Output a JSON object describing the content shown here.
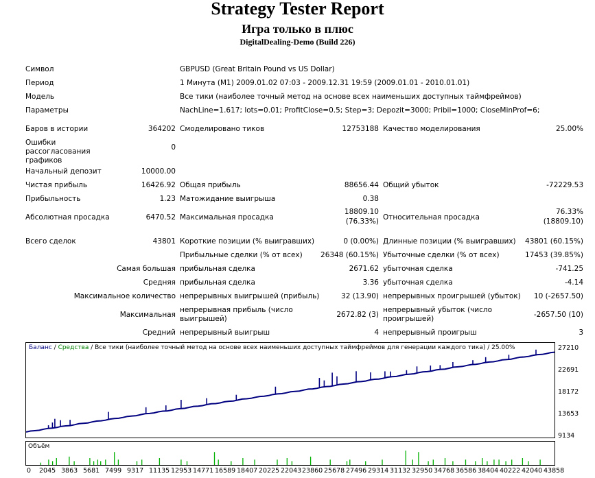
{
  "header": {
    "title": "Strategy Tester Report",
    "subtitle": "Игра только в плюс",
    "server": "DigitalDealing-Demo (Build 226)"
  },
  "settings": {
    "symbol_label": "Символ",
    "symbol_value": "GBPUSD (Great Britain Pound vs US Dollar)",
    "period_label": "Период",
    "period_value": "1 Минута (M1) 2009.01.02 07:03 - 2009.12.31 19:59 (2009.01.01 - 2010.01.01)",
    "model_label": "Модель",
    "model_value": "Все тики (наиболее точный метод на основе всех наименьших доступных таймфреймов)",
    "params_label": "Параметры",
    "params_value": "NachLine=1.617; lots=0.01; ProfitClose=0.5; Step=3; Depozit=3000; Pribil=1000; CloseMinProf=6;"
  },
  "quality": {
    "bars_label": "Баров в истории",
    "bars_value": "364202",
    "ticks_label": "Смоделировано тиков",
    "ticks_value": "12753188",
    "quality_label": "Качество моделирования",
    "quality_value": "25.00%",
    "errors_label": "Ошибки рассогласования графиков",
    "errors_value": "0"
  },
  "results": {
    "deposit_label": "Начальный депозит",
    "deposit_value": "10000.00",
    "net_label": "Чистая прибыль",
    "net_value": "16426.92",
    "gross_profit_label": "Общая прибыль",
    "gross_profit_value": "88656.44",
    "gross_loss_label": "Общий убыток",
    "gross_loss_value": "-72229.53",
    "pf_label": "Прибыльность",
    "pf_value": "1.23",
    "payoff_label": "Матожидание выигрыша",
    "payoff_value": "0.38",
    "abs_dd_label": "Абсолютная просадка",
    "abs_dd_value": "6470.52",
    "max_dd_label": "Максимальная просадка",
    "max_dd_value1": "18809.10",
    "max_dd_value2": "(76.33%)",
    "rel_dd_label": "Относительная просадка",
    "rel_dd_value1": "76.33%",
    "rel_dd_value2": "(18809.10)"
  },
  "trades": {
    "total_label": "Всего сделок",
    "total_value": "43801",
    "short_label": "Короткие позиции (% выигравших)",
    "short_value": "0 (0.00%)",
    "long_label": "Длинные позиции (% выигравших)",
    "long_value": "43801 (60.15%)",
    "profit_trades_label": "Прибыльные сделки (% от всех)",
    "profit_trades_value": "26348 (60.15%)",
    "loss_trades_label": "Убыточные сделки (% от всех)",
    "loss_trades_value": "17453 (39.85%)",
    "largest_label": "Самая большая",
    "largest_profit_label": "прибыльная сделка",
    "largest_profit_value": "2671.62",
    "largest_loss_label": "убыточная сделка",
    "largest_loss_value": "-741.25",
    "average_label": "Средняя",
    "average_profit_label": "прибыльная сделка",
    "average_profit_value": "3.36",
    "average_loss_label": "убыточная сделка",
    "average_loss_value": "-4.14",
    "max_count_label": "Максимальное количество",
    "max_cons_wins_label": "непрерывных выигрышей (прибыль)",
    "max_cons_wins_value": "32 (13.90)",
    "max_cons_losses_label": "непрерывных проигрышей (убыток)",
    "max_cons_losses_value": "10 (-2657.50)",
    "maximal_label": "Максимальная",
    "max_cons_profit_label": "непрерывная прибыль (число выигрышей)",
    "max_cons_profit_value": "2672.82 (3)",
    "max_cons_loss_label": "непрерывный убыток (число проигрышей)",
    "max_cons_loss_value": "-2657.50 (10)",
    "avg_cons_label": "Средний",
    "avg_cons_wins_label": "непрерывный выигрыш",
    "avg_cons_wins_value": "4",
    "avg_cons_losses_label": "непрерывный проигрыш",
    "avg_cons_losses_value": "3"
  },
  "chart_data": {
    "type": "line",
    "legend_balance": "Баланс",
    "legend_sep1": " / ",
    "legend_equity": "Средства",
    "legend_rest": " / Все тики (наиболее точный метод на основе всех наименьших доступных таймфреймов для генерации каждого тика) / 25.00%",
    "volume_label": "Объём",
    "colors": {
      "balance": "#000080",
      "equity": "#008000",
      "volume": "#00b000"
    },
    "y_ticks": [
      "27210",
      "22691",
      "18172",
      "13653",
      "9134"
    ],
    "x_ticks": [
      "0",
      "2045",
      "3863",
      "5681",
      "7499",
      "9317",
      "11135",
      "12953",
      "14771",
      "16589",
      "18407",
      "20225",
      "22043",
      "23860",
      "25678",
      "27496",
      "29314",
      "31132",
      "32950",
      "34768",
      "36586",
      "38404",
      "40222",
      "42040",
      "43858"
    ],
    "ylim": [
      8000,
      28000
    ],
    "xlim": [
      0,
      43801
    ],
    "balance": [
      [
        0,
        10000
      ],
      [
        43801,
        26427
      ]
    ]
  }
}
